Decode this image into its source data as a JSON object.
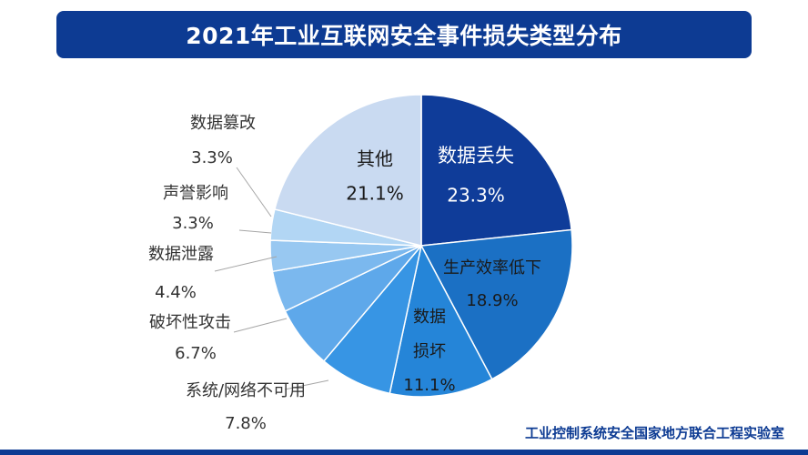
{
  "title": "2021年工业互联网安全事件损失类型分布",
  "footer": "工业控制系统安全国家地方联合工程实验室",
  "colors": {
    "title_bg": "#0d3b93",
    "footer_text": "#0d3b93",
    "leader_line": "#a6a6a6",
    "label_text": "#333333",
    "inside_label_light": "#ffffff",
    "inside_label_dark": "#1a1a1a"
  },
  "chart_data": {
    "type": "pie",
    "unit": "%",
    "slices": [
      {
        "label": "数据丢失",
        "value": 23.3,
        "value_text": "23.3%",
        "color": "#0f3c99"
      },
      {
        "label": "生产效率低下",
        "value": 18.9,
        "value_text": "18.9%",
        "color": "#1b70c4"
      },
      {
        "label": "数据损坏",
        "label_lines": [
          "数据",
          "损坏"
        ],
        "value": 11.1,
        "value_text": "11.1%",
        "color": "#2585d8"
      },
      {
        "label": "系统/网络不可用",
        "value": 7.8,
        "value_text": "7.8%",
        "color": "#3795e4"
      },
      {
        "label": "破坏性攻击",
        "value": 6.7,
        "value_text": "6.7%",
        "color": "#5ea8ea"
      },
      {
        "label": "数据泄露",
        "value": 4.4,
        "value_text": "4.4%",
        "color": "#7bb8ee"
      },
      {
        "label": "声誉影响",
        "value": 3.3,
        "value_text": "3.3%",
        "color": "#98c8f1"
      },
      {
        "label": "数据篡改",
        "value": 3.3,
        "value_text": "3.3%",
        "color": "#b2d6f4"
      },
      {
        "label": "其他",
        "value": 21.1,
        "value_text": "21.1%",
        "color": "#c9daf1"
      }
    ]
  }
}
